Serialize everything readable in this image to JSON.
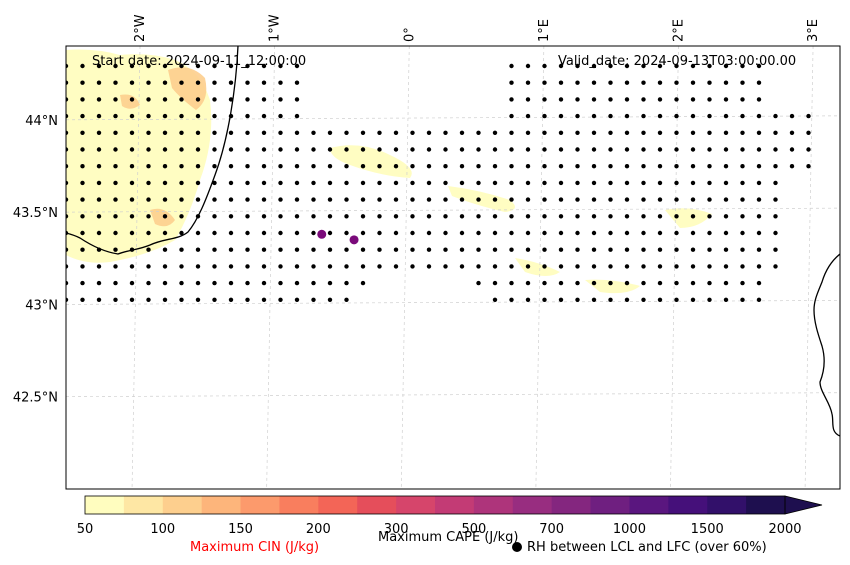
{
  "map": {
    "start_date_text": "Start date: 2024-09-11_12:00:00",
    "valid_date_text": "Valid_date: 2024-09-13T03:00:00.00",
    "lon_ticks": [
      {
        "label": "2°W",
        "lon": -2
      },
      {
        "label": "1°W",
        "lon": -1
      },
      {
        "label": "0°",
        "lon": 0
      },
      {
        "label": "1°E",
        "lon": 1
      },
      {
        "label": "2°E",
        "lon": 2
      },
      {
        "label": "3°E",
        "lon": 3
      }
    ],
    "lat_ticks": [
      {
        "label": "44°N",
        "lat": 44.0
      },
      {
        "label": "43.5°N",
        "lat": 43.5
      },
      {
        "label": "43°N",
        "lat": 43.0
      },
      {
        "label": "42.5°N",
        "lat": 42.5
      }
    ],
    "lon_range": [
      -2.55,
      3.2
    ],
    "lat_range": [
      42.0,
      44.4
    ],
    "grid": true,
    "marker_color": "#000000",
    "cape_marker_color": "#7a0a7a",
    "cape_markers": [
      {
        "lon": -0.65,
        "lat": 43.38
      },
      {
        "lon": -0.41,
        "lat": 43.35
      }
    ]
  },
  "colorbar": {
    "levels": [
      "50",
      "100",
      "150",
      "200",
      "300",
      "500",
      "700",
      "1000",
      "1500",
      "2000"
    ],
    "colors": [
      "#fffdbf",
      "#fee7a4",
      "#fdcf8e",
      "#fdb57b",
      "#fc9a6c",
      "#f97e5e",
      "#f36557",
      "#e54e5b",
      "#d6456b",
      "#c33b75",
      "#ae347b",
      "#982d80",
      "#84267f",
      "#6f1f80",
      "#5a167f",
      "#45107a",
      "#32106a",
      "#1e0f4f"
    ],
    "cape_label": "Maximum CAPE (J/kg)",
    "cin_label": "Maximum CIN (J/kg)",
    "cin_color": "#ff0000",
    "rh_label": "RH between LCL and LFC (over 60%)"
  }
}
